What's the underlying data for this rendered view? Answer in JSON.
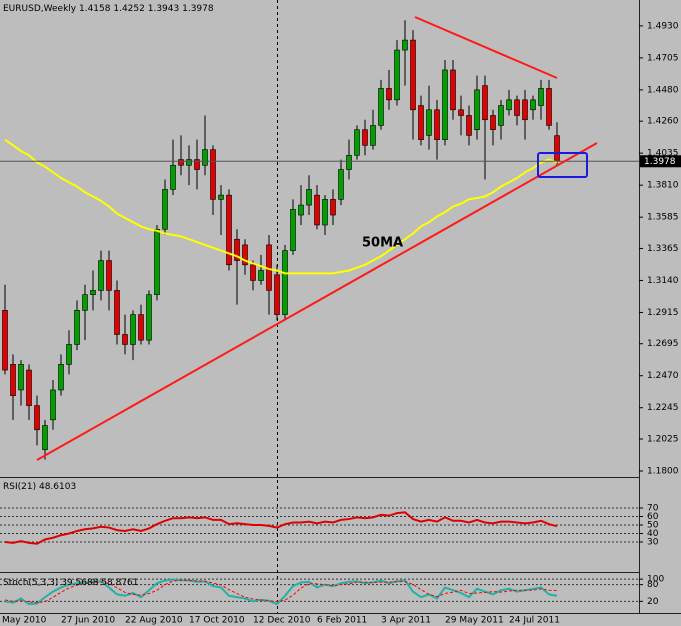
{
  "chart_data": [
    {
      "type": "candlestick",
      "title": "EURUSD,Weekly",
      "categories": [
        "May 2010",
        null,
        null,
        null,
        null,
        null,
        null,
        null,
        "27 Jun 2010",
        null,
        null,
        null,
        null,
        null,
        null,
        null,
        "22 Aug 2010",
        null,
        null,
        null,
        null,
        null,
        null,
        null,
        "17 Oct 2010",
        null,
        null,
        null,
        null,
        null,
        null,
        null,
        "12 Dec 2010",
        null,
        null,
        null,
        null,
        null,
        null,
        null,
        "6 Feb 2011",
        null,
        null,
        null,
        null,
        null,
        null,
        null,
        "3 Apr 2011",
        null,
        null,
        null,
        null,
        null,
        null,
        null,
        "29 May 2011",
        null,
        null,
        null,
        null,
        null,
        null,
        null,
        "24 Jul 2011",
        null,
        null,
        null,
        null,
        null
      ],
      "ohlc": [
        [
          1.293,
          1.311,
          1.248,
          1.251
        ],
        [
          1.255,
          1.262,
          1.216,
          1.233
        ],
        [
          1.237,
          1.258,
          1.226,
          1.255
        ],
        [
          1.251,
          1.255,
          1.216,
          1.226
        ],
        [
          1.226,
          1.233,
          1.198,
          1.209
        ],
        [
          1.195,
          1.216,
          1.188,
          1.212
        ],
        [
          1.216,
          1.244,
          1.209,
          1.237
        ],
        [
          1.237,
          1.262,
          1.233,
          1.255
        ],
        [
          1.255,
          1.279,
          1.248,
          1.269
        ],
        [
          1.269,
          1.3,
          1.265,
          1.293
        ],
        [
          1.293,
          1.311,
          1.272,
          1.304
        ],
        [
          1.304,
          1.321,
          1.293,
          1.307
        ],
        [
          1.307,
          1.335,
          1.3,
          1.328
        ],
        [
          1.328,
          1.335,
          1.293,
          1.307
        ],
        [
          1.307,
          1.314,
          1.269,
          1.276
        ],
        [
          1.276,
          1.29,
          1.262,
          1.269
        ],
        [
          1.269,
          1.293,
          1.258,
          1.29
        ],
        [
          1.29,
          1.297,
          1.269,
          1.272
        ],
        [
          1.272,
          1.307,
          1.269,
          1.304
        ],
        [
          1.304,
          1.353,
          1.3,
          1.35
        ],
        [
          1.35,
          1.385,
          1.346,
          1.378
        ],
        [
          1.378,
          1.413,
          1.374,
          1.395
        ],
        [
          1.399,
          1.416,
          1.388,
          1.395
        ],
        [
          1.395,
          1.409,
          1.381,
          1.399
        ],
        [
          1.399,
          1.413,
          1.378,
          1.392
        ],
        [
          1.395,
          1.43,
          1.388,
          1.406
        ],
        [
          1.406,
          1.409,
          1.36,
          1.371
        ],
        [
          1.371,
          1.381,
          1.346,
          1.374
        ],
        [
          1.374,
          1.378,
          1.321,
          1.325
        ],
        [
          1.343,
          1.35,
          1.297,
          1.328
        ],
        [
          1.339,
          1.343,
          1.318,
          1.325
        ],
        [
          1.325,
          1.328,
          1.307,
          1.314
        ],
        [
          1.314,
          1.332,
          1.311,
          1.321
        ],
        [
          1.339,
          1.346,
          1.29,
          1.307
        ],
        [
          1.318,
          1.325,
          1.286,
          1.29
        ],
        [
          1.29,
          1.339,
          1.286,
          1.335
        ],
        [
          1.335,
          1.371,
          1.332,
          1.364
        ],
        [
          1.36,
          1.381,
          1.353,
          1.367
        ],
        [
          1.367,
          1.388,
          1.36,
          1.378
        ],
        [
          1.374,
          1.381,
          1.35,
          1.353
        ],
        [
          1.353,
          1.374,
          1.346,
          1.371
        ],
        [
          1.371,
          1.378,
          1.353,
          1.36
        ],
        [
          1.371,
          1.399,
          1.367,
          1.392
        ],
        [
          1.392,
          1.413,
          1.385,
          1.402
        ],
        [
          1.402,
          1.423,
          1.399,
          1.42
        ],
        [
          1.42,
          1.427,
          1.402,
          1.409
        ],
        [
          1.409,
          1.434,
          1.406,
          1.423
        ],
        [
          1.423,
          1.455,
          1.42,
          1.449
        ],
        [
          1.449,
          1.462,
          1.434,
          1.441
        ],
        [
          1.441,
          1.483,
          1.437,
          1.476
        ],
        [
          1.476,
          1.497,
          1.451,
          1.483
        ],
        [
          1.483,
          1.49,
          1.413,
          1.434
        ],
        [
          1.437,
          1.444,
          1.409,
          1.413
        ],
        [
          1.416,
          1.451,
          1.406,
          1.434
        ],
        [
          1.434,
          1.441,
          1.399,
          1.413
        ],
        [
          1.413,
          1.469,
          1.409,
          1.462
        ],
        [
          1.462,
          1.469,
          1.427,
          1.434
        ],
        [
          1.434,
          1.444,
          1.416,
          1.43
        ],
        [
          1.43,
          1.437,
          1.409,
          1.416
        ],
        [
          1.42,
          1.458,
          1.413,
          1.448
        ],
        [
          1.451,
          1.458,
          1.385,
          1.427
        ],
        [
          1.43,
          1.434,
          1.409,
          1.42
        ],
        [
          1.423,
          1.441,
          1.413,
          1.437
        ],
        [
          1.434,
          1.448,
          1.43,
          1.441
        ],
        [
          1.441,
          1.444,
          1.423,
          1.43
        ],
        [
          1.441,
          1.448,
          1.413,
          1.427
        ],
        [
          1.434,
          1.444,
          1.427,
          1.441
        ],
        [
          1.437,
          1.455,
          1.427,
          1.449
        ],
        [
          1.449,
          1.455,
          1.42,
          1.423
        ],
        [
          1.4158,
          1.4252,
          1.3943,
          1.3978
        ]
      ],
      "colors": {
        "up": "#00a000",
        "down": "#e00000"
      },
      "ma": {
        "color": "#ffff00",
        "values": [
          1.413,
          1.409,
          1.405,
          1.402,
          1.397,
          1.394,
          1.39,
          1.386,
          1.383,
          1.38,
          1.376,
          1.373,
          1.37,
          1.366,
          1.361,
          1.358,
          1.355,
          1.352,
          1.35,
          1.349,
          1.347,
          1.346,
          1.345,
          1.343,
          1.341,
          1.339,
          1.337,
          1.335,
          1.333,
          1.331,
          1.328,
          1.326,
          1.324,
          1.322,
          1.321,
          1.319,
          1.319,
          1.319,
          1.319,
          1.319,
          1.319,
          1.319,
          1.32,
          1.321,
          1.323,
          1.325,
          1.328,
          1.331,
          1.335,
          1.339,
          1.343,
          1.347,
          1.352,
          1.355,
          1.359,
          1.362,
          1.366,
          1.368,
          1.371,
          1.372,
          1.373,
          1.376,
          1.38,
          1.383,
          1.386,
          1.39,
          1.393,
          1.397,
          1.399,
          1.397
        ]
      },
      "annotations": [
        {
          "text": "50MA",
          "color": "#1a1ae0"
        }
      ],
      "ylim": [
        1.1765,
        1.5112
      ],
      "yticks": [
        {
          "value": 1.493,
          "label": "1.4930"
        },
        1.4705,
        {
          "value": 1.448,
          "label": "1.4480"
        },
        {
          "value": 1.426,
          "label": "1.4260"
        },
        1.4035,
        {
          "value": 1.381,
          "label": "1.3810"
        },
        1.3585,
        1.3365,
        {
          "value": 1.314,
          "label": "1.3140"
        },
        1.2915,
        1.2695,
        {
          "value": 1.247,
          "label": "1.2470"
        },
        1.2245,
        1.2025,
        {
          "value": 1.18,
          "label": "1.1800"
        }
      ]
    },
    {
      "type": "line",
      "title": "RSI(21)",
      "series": [
        {
          "color": "#e00000",
          "values": [
            30,
            29,
            31,
            29,
            28,
            33,
            35,
            38,
            40,
            43,
            45,
            46,
            48,
            47,
            44,
            43,
            45,
            43,
            46,
            51,
            55,
            58,
            58,
            59,
            58,
            59,
            56,
            56,
            51,
            52,
            51,
            50,
            50,
            49,
            47,
            51,
            53,
            53,
            54,
            52,
            54,
            53,
            56,
            57,
            59,
            58,
            59,
            62,
            61,
            64,
            65,
            57,
            54,
            56,
            54,
            59,
            55,
            55,
            53,
            56,
            53,
            52,
            54,
            54,
            53,
            52,
            53,
            55,
            51,
            48.6103
          ]
        }
      ],
      "ylim": [
        -4.1,
        105.3
      ],
      "yticks": [
        70,
        60,
        50,
        40,
        30
      ]
    },
    {
      "type": "line",
      "title": "Stoch(5,3,3)",
      "series": [
        {
          "color": "#20b2aa",
          "values": [
            20,
            15,
            30,
            10,
            12,
            35,
            55,
            70,
            80,
            85,
            88,
            90,
            92,
            70,
            45,
            40,
            50,
            35,
            60,
            85,
            95,
            98,
            96,
            95,
            90,
            92,
            75,
            70,
            40,
            35,
            30,
            20,
            25,
            22,
            10,
            40,
            75,
            88,
            90,
            70,
            80,
            75,
            85,
            90,
            92,
            85,
            88,
            95,
            85,
            92,
            96,
            55,
            35,
            45,
            30,
            70,
            60,
            50,
            35,
            65,
            55,
            45,
            60,
            65,
            55,
            60,
            65,
            70,
            45,
            39.5688
          ]
        },
        {
          "color": "#ff0000",
          "dashed": true,
          "values": [
            25,
            20,
            22,
            18,
            15,
            19,
            34,
            53,
            68,
            78,
            84,
            88,
            90,
            84,
            69,
            52,
            45,
            42,
            48,
            60,
            80,
            93,
            96,
            96,
            94,
            92,
            86,
            79,
            62,
            48,
            35,
            28,
            25,
            22,
            19,
            24,
            42,
            68,
            84,
            83,
            80,
            75,
            80,
            83,
            89,
            89,
            88,
            89,
            89,
            91,
            91,
            81,
            62,
            45,
            37,
            48,
            53,
            60,
            48,
            50,
            52,
            55,
            53,
            57,
            60,
            60,
            60,
            65,
            60,
            58.8761
          ]
        }
      ],
      "ylim": [
        -22,
        122
      ],
      "yticks": [
        100,
        80,
        20
      ]
    }
  ]
}
